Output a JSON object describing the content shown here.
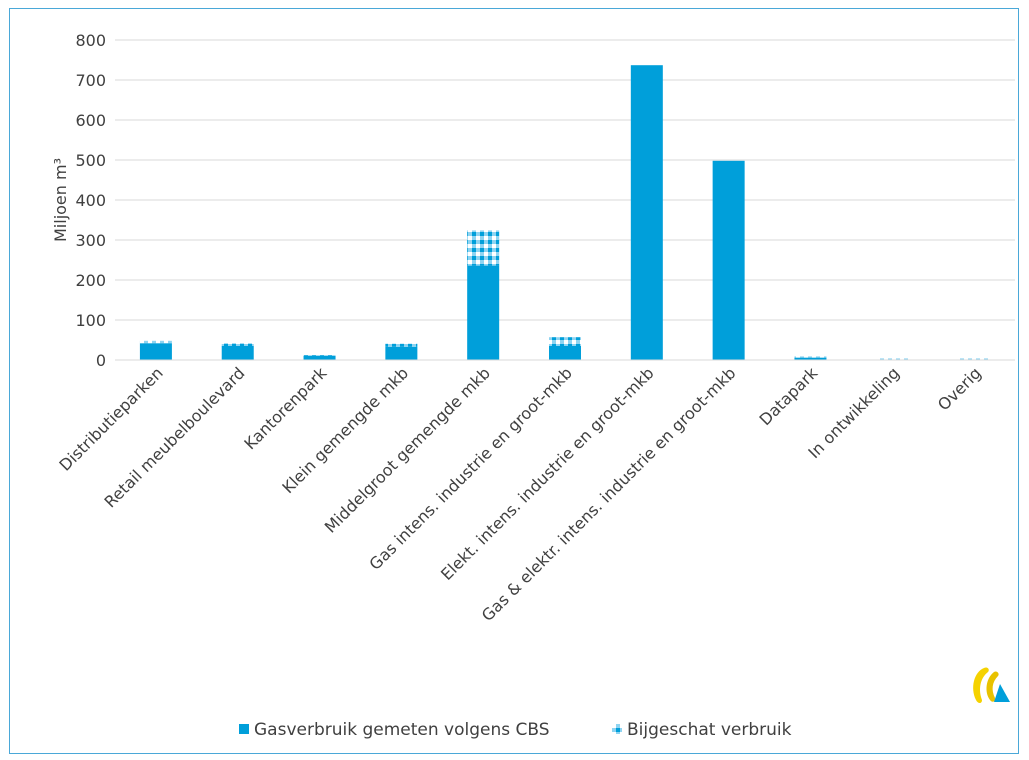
{
  "chart_data": {
    "type": "bar",
    "stacked": true,
    "ylabel": "Miljoen m³",
    "ylim": [
      0,
      800
    ],
    "yticks": [
      0,
      100,
      200,
      300,
      400,
      500,
      600,
      700,
      800
    ],
    "grid": true,
    "legend_position": "bottom",
    "categories": [
      "Distributieparken",
      "Retail meubelboulevard",
      "Kantorenpark",
      "Klein gemengde mkb",
      "Middelgroot gemengde mkb",
      "Gas intens. industrie en groot-mkb",
      "Elekt. intens. industrie en groot-mkb",
      "Gas & elektr. intens. industrie en groot-mkb",
      "Datapark",
      "In ontwikkeling",
      "Overig"
    ],
    "series": [
      {
        "name": "Gasverbruik gemeten volgens CBS",
        "color": "#009fda",
        "values": [
          42,
          35,
          10,
          33,
          236,
          35,
          737,
          498,
          6,
          1,
          1
        ]
      },
      {
        "name": "Bijgeschat verbruik",
        "color": "#7fcff0",
        "pattern": "checkered",
        "values": [
          6,
          7,
          2,
          8,
          88,
          22,
          0,
          0,
          3,
          3,
          3
        ]
      }
    ]
  },
  "legend": {
    "items": [
      {
        "label": "Gasverbruik gemeten volgens CBS"
      },
      {
        "label": "Bijgeschat verbruik"
      }
    ]
  },
  "logo": {
    "name": "logo-icon",
    "colors": [
      "#f5d200",
      "#009fda"
    ]
  }
}
